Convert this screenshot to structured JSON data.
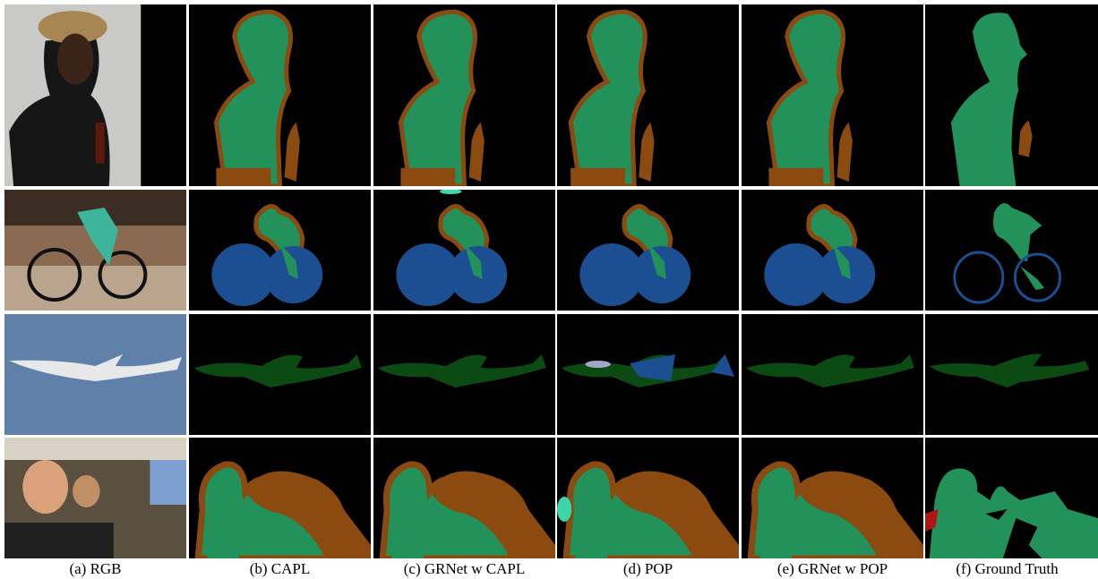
{
  "figure": {
    "captions": [
      "(a) RGB",
      "(b) CAPL",
      "(c) GRNet w CAPL",
      "(d) POP",
      "(e) GRNet w POP",
      "(f) Ground Truth"
    ]
  }
}
